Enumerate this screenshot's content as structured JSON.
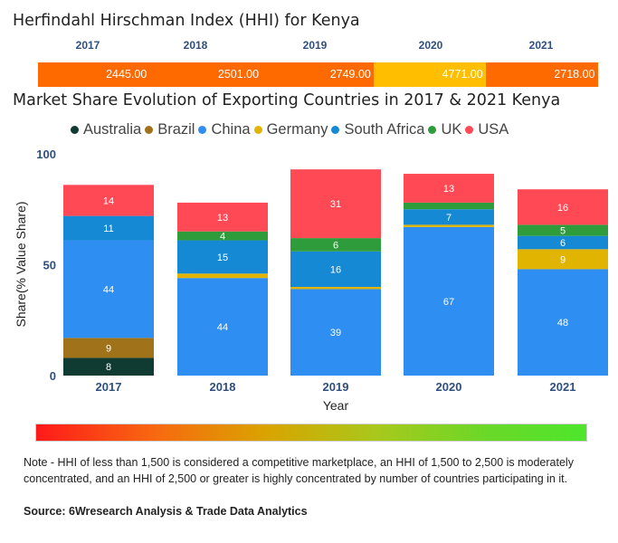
{
  "hhi": {
    "title": "Herfindahl Hirschman Index (HHI) for Kenya",
    "cells": [
      {
        "year": "2017",
        "value": "2445.00",
        "color": "#ff6a00"
      },
      {
        "year": "2018",
        "value": "2501.00",
        "color": "#ff6a00"
      },
      {
        "year": "2019",
        "value": "2749.00",
        "color": "#ff6a00"
      },
      {
        "year": "2020",
        "value": "4771.00",
        "color": "#ffbf00"
      },
      {
        "year": "2021",
        "value": "2718.00",
        "color": "#ff6a00"
      }
    ]
  },
  "chart_data": {
    "type": "bar",
    "stacked": true,
    "title": "Market Share Evolution of Exporting Countries in 2017 & 2021 Kenya",
    "xlabel": "Year",
    "ylabel": "Share(% Value Share)",
    "ylim": [
      0,
      100
    ],
    "yticks": [
      "0",
      "50",
      "100"
    ],
    "categories": [
      "2017",
      "2018",
      "2019",
      "2020",
      "2021"
    ],
    "series": [
      {
        "name": "Australia",
        "color": "#0f3b33",
        "values": [
          8,
          0,
          0,
          0,
          0
        ],
        "labels": [
          "8",
          "",
          "",
          "",
          ""
        ]
      },
      {
        "name": "Brazil",
        "color": "#a0731a",
        "values": [
          9,
          0,
          0,
          0,
          0
        ],
        "labels": [
          "9",
          "",
          "",
          "",
          ""
        ]
      },
      {
        "name": "China",
        "color": "#2e8ef2",
        "values": [
          44,
          44,
          39,
          67,
          48
        ],
        "labels": [
          "44",
          "44",
          "39",
          "67",
          "48"
        ]
      },
      {
        "name": "Germany",
        "color": "#e0b400",
        "values": [
          0,
          2,
          1,
          1,
          9
        ],
        "labels": [
          "",
          "",
          "",
          "",
          "9"
        ]
      },
      {
        "name": "South Africa",
        "color": "#1589d4",
        "values": [
          11,
          15,
          16,
          7,
          6
        ],
        "labels": [
          "11",
          "15",
          "16",
          "7",
          "6"
        ]
      },
      {
        "name": "UK",
        "color": "#2e9c3a",
        "values": [
          0,
          4,
          6,
          3,
          5
        ],
        "labels": [
          "",
          "4",
          "6",
          "",
          "5"
        ]
      },
      {
        "name": "USA",
        "color": "#ff4a55",
        "values": [
          14,
          13,
          31,
          13,
          16
        ],
        "labels": [
          "14",
          "13",
          "31",
          "13",
          "16"
        ]
      }
    ]
  },
  "gradient": {
    "start_color": "#ff1a1a",
    "end_color": "#4ee62c"
  },
  "note": "Note - HHI of less than 1,500 is considered a competitive marketplace, an HHI of 1,500 to 2,500 is moderately concentrated, and an HHI of 2,500 or greater is highly concentrated by number of countries participating in it.",
  "source": "Source: 6Wresearch Analysis & Trade Data Analytics"
}
